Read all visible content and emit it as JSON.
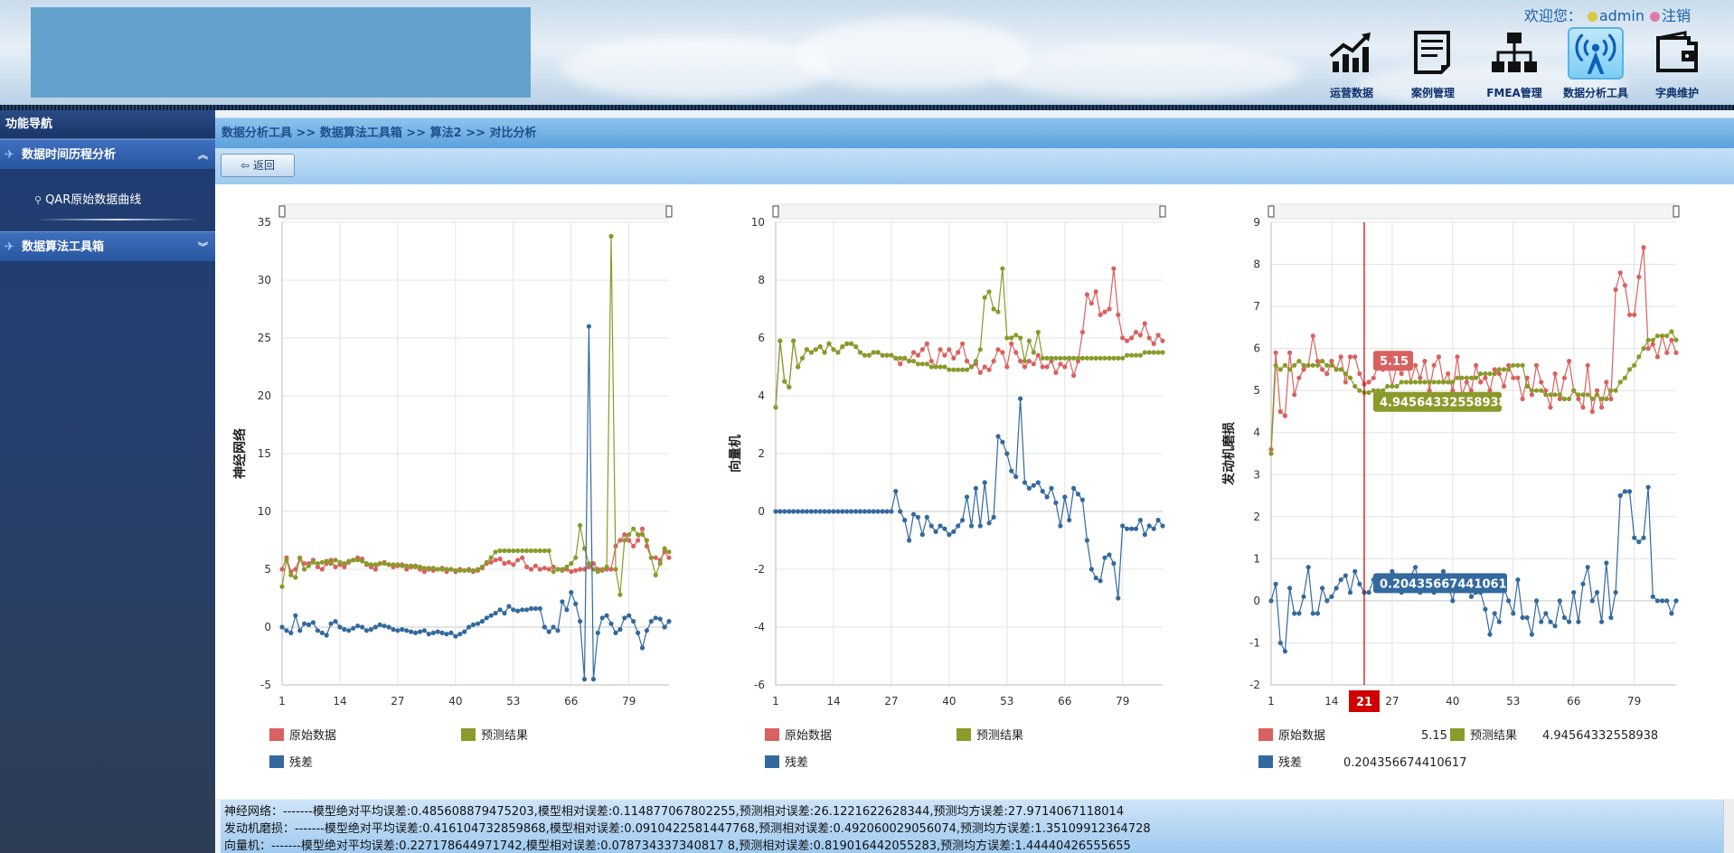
{
  "header": {
    "welcome_label": "欢迎您：",
    "username": "admin",
    "logout_label": "注销"
  },
  "top_nav": [
    {
      "label": "运营数据",
      "icon": "bar-chart-growth-icon",
      "active": false
    },
    {
      "label": "案例管理",
      "icon": "document-list-icon",
      "active": false
    },
    {
      "label": "FMEA管理",
      "icon": "hierarchy-tree-icon",
      "active": false
    },
    {
      "label": "数据分析工具",
      "icon": "antenna-signal-icon",
      "active": true
    },
    {
      "label": "字典维护",
      "icon": "wallet-icon",
      "active": false
    }
  ],
  "sidebar": {
    "title": "功能导航",
    "groups": [
      {
        "label": "数据时间历程分析",
        "expanded": true,
        "items": [
          {
            "label": "QAR原始数据曲线"
          }
        ]
      },
      {
        "label": "数据算法工具箱",
        "expanded": false,
        "items": []
      }
    ]
  },
  "breadcrumb": "数据分析工具 >> 数据算法工具箱 >> 算法2 >> 对比分析",
  "toolbar": {
    "back_label": "返回"
  },
  "colors": {
    "raw": "#d9615f",
    "predict": "#8a9a2b",
    "residual": "#33699e",
    "crosshair": "#c00000"
  },
  "legend_labels": {
    "raw": "原始数据",
    "predict": "预测结果",
    "residual": "残差"
  },
  "chart_data": [
    {
      "type": "line",
      "ylabel": "神经网络",
      "ylim": [
        -5,
        35
      ],
      "yticks": [
        -5,
        0,
        5,
        10,
        15,
        20,
        25,
        30,
        35
      ],
      "xticks": [
        1,
        14,
        27,
        40,
        53,
        66,
        79
      ],
      "x_range": [
        1,
        88
      ],
      "grid": true,
      "legend_placement": "bottom",
      "series": [
        {
          "name": "原始数据",
          "key": "raw",
          "values": [
            5.0,
            6.0,
            4.8,
            5.0,
            6.0,
            5.5,
            5.5,
            5.8,
            5.2,
            5.0,
            5.5,
            5.8,
            5.2,
            5.4,
            5.2,
            5.6,
            5.8,
            6.0,
            5.9,
            5.4,
            5.2,
            5.0,
            5.5,
            5.6,
            5.4,
            5.2,
            5.3,
            5.4,
            5.0,
            5.2,
            5.3,
            5.0,
            4.8,
            5.0,
            4.9,
            5.0,
            5.1,
            4.8,
            5.0,
            4.8,
            5.0,
            4.9,
            5.0,
            4.8,
            4.9,
            5.1,
            5.5,
            5.6,
            5.8,
            5.9,
            5.5,
            5.6,
            5.4,
            5.8,
            6.0,
            5.2,
            5.0,
            5.3,
            5.0,
            5.1,
            5.0,
            5.2,
            5.0,
            4.9,
            5.0,
            4.8,
            4.9,
            5.0,
            5.0,
            5.2,
            5.5,
            5.0,
            4.9,
            5.0,
            5.0,
            7.0,
            7.5,
            8.0,
            7.5,
            7.0,
            7.5,
            8.5,
            7.0,
            6.0,
            6.0,
            5.8,
            6.5,
            6.0
          ]
        },
        {
          "name": "预测结果",
          "key": "predict",
          "values": [
            3.5,
            5.8,
            4.5,
            4.3,
            5.9,
            5.0,
            5.3,
            5.6,
            5.5,
            5.6,
            5.7,
            5.5,
            5.8,
            5.6,
            5.5,
            5.7,
            5.8,
            5.8,
            5.7,
            5.5,
            5.4,
            5.4,
            5.5,
            5.5,
            5.4,
            5.4,
            5.4,
            5.3,
            5.3,
            5.3,
            5.2,
            5.2,
            5.1,
            5.1,
            5.1,
            5.0,
            5.0,
            5.0,
            5.0,
            4.9,
            4.9,
            4.9,
            4.9,
            4.9,
            5.0,
            5.2,
            5.6,
            6.0,
            6.5,
            6.6,
            6.6,
            6.6,
            6.6,
            6.6,
            6.6,
            6.6,
            6.6,
            6.6,
            6.6,
            6.6,
            6.6,
            4.8,
            5.0,
            5.0,
            5.2,
            5.5,
            6.0,
            8.8,
            6.8,
            5.5,
            5.0,
            4.8,
            5.0,
            5.2,
            33.8,
            5.0,
            2.8,
            7.5,
            8.0,
            8.5,
            8.0,
            8.0,
            7.5,
            6.0,
            4.5,
            5.5,
            6.8,
            6.5
          ]
        },
        {
          "name": "残差",
          "key": "residual",
          "values": [
            0.0,
            -0.3,
            -0.5,
            1.0,
            -0.3,
            0.3,
            0.2,
            0.4,
            -0.3,
            -0.5,
            -0.7,
            0.3,
            0.5,
            0.0,
            -0.2,
            -0.3,
            -0.1,
            0.1,
            0.0,
            -0.3,
            -0.2,
            0.0,
            0.2,
            0.1,
            0.0,
            -0.2,
            -0.3,
            -0.2,
            -0.3,
            -0.4,
            -0.5,
            -0.4,
            -0.3,
            -0.6,
            -0.5,
            -0.4,
            -0.5,
            -0.6,
            -0.5,
            -0.8,
            -0.6,
            -0.4,
            0.0,
            0.2,
            0.3,
            0.5,
            0.8,
            1.0,
            1.2,
            1.5,
            1.2,
            1.8,
            1.5,
            1.4,
            1.5,
            1.5,
            1.6,
            1.6,
            1.6,
            0.0,
            -0.4,
            0.0,
            -0.3,
            2.2,
            1.5,
            3.0,
            2.0,
            0.5,
            -4.5,
            26.0,
            -4.5,
            -0.5,
            0.8,
            1.0,
            0.3,
            -0.5,
            -0.2,
            0.8,
            1.0,
            0.5,
            -0.5,
            -1.8,
            -0.3,
            0.5,
            0.8,
            0.7,
            0.0,
            0.5
          ]
        }
      ]
    },
    {
      "type": "line",
      "ylabel": "向量机",
      "ylim": [
        -6,
        10
      ],
      "yticks": [
        -6,
        -4,
        -2,
        0,
        2,
        4,
        6,
        8,
        10
      ],
      "xticks": [
        1,
        14,
        27,
        40,
        53,
        66,
        79
      ],
      "x_range": [
        1,
        88
      ],
      "grid": true,
      "legend_placement": "bottom",
      "series": [
        {
          "name": "原始数据",
          "key": "raw",
          "values": [
            3.6,
            5.9,
            4.5,
            4.3,
            5.9,
            5.0,
            5.3,
            5.6,
            5.5,
            5.6,
            5.7,
            5.5,
            5.8,
            5.6,
            5.5,
            5.7,
            5.8,
            5.8,
            5.7,
            5.5,
            5.4,
            5.4,
            5.5,
            5.5,
            5.4,
            5.4,
            5.4,
            5.3,
            5.1,
            5.3,
            5.2,
            5.5,
            5.4,
            5.6,
            5.8,
            5.2,
            5.0,
            5.6,
            5.4,
            5.6,
            5.3,
            5.5,
            5.8,
            5.2,
            5.0,
            5.1,
            4.8,
            5.0,
            4.9,
            5.2,
            5.6,
            5.5,
            5.0,
            5.8,
            5.5,
            5.2,
            5.0,
            5.2,
            5.1,
            5.4,
            5.0,
            5.0,
            5.2,
            4.8,
            5.1,
            5.0,
            5.3,
            4.7,
            5.2,
            6.2,
            7.5,
            7.2,
            7.6,
            6.8,
            6.9,
            7.0,
            8.4,
            6.8,
            6.0,
            5.9,
            6.0,
            6.2,
            6.1,
            6.5,
            6.0,
            5.8,
            6.1,
            5.9
          ]
        },
        {
          "name": "预测结果",
          "key": "predict",
          "values": [
            3.6,
            5.9,
            4.5,
            4.3,
            5.9,
            5.0,
            5.3,
            5.6,
            5.5,
            5.6,
            5.7,
            5.5,
            5.8,
            5.6,
            5.5,
            5.7,
            5.8,
            5.8,
            5.7,
            5.5,
            5.4,
            5.4,
            5.5,
            5.5,
            5.4,
            5.4,
            5.4,
            5.3,
            5.3,
            5.3,
            5.2,
            5.2,
            5.1,
            5.1,
            5.1,
            5.0,
            5.0,
            5.0,
            5.0,
            4.9,
            4.9,
            4.9,
            4.9,
            4.9,
            5.0,
            5.2,
            5.6,
            7.4,
            7.6,
            7.0,
            6.9,
            8.4,
            6.0,
            6.0,
            6.1,
            6.0,
            5.2,
            5.9,
            5.5,
            6.2,
            5.3,
            5.3,
            5.3,
            5.3,
            5.3,
            5.3,
            5.3,
            5.3,
            5.3,
            5.3,
            5.3,
            5.3,
            5.3,
            5.3,
            5.3,
            5.3,
            5.3,
            5.3,
            5.3,
            5.4,
            5.4,
            5.4,
            5.4,
            5.5,
            5.5,
            5.5,
            5.5,
            5.5
          ]
        },
        {
          "name": "残差",
          "key": "residual",
          "values": [
            0.0,
            0.0,
            0.0,
            0.0,
            0.0,
            0.0,
            0.0,
            0.0,
            0.0,
            0.0,
            0.0,
            0.0,
            0.0,
            0.0,
            0.0,
            0.0,
            0.0,
            0.0,
            0.0,
            0.0,
            0.0,
            0.0,
            0.0,
            0.0,
            0.0,
            0.0,
            0.0,
            0.7,
            0.0,
            -0.3,
            -1.0,
            -0.1,
            -0.2,
            -0.8,
            -0.2,
            -0.5,
            -0.7,
            -0.5,
            -0.6,
            -0.8,
            -0.7,
            -0.5,
            -0.3,
            0.5,
            -0.5,
            0.8,
            -0.5,
            1.0,
            -0.4,
            -0.2,
            2.6,
            2.4,
            2.0,
            1.4,
            1.2,
            3.9,
            1.0,
            0.8,
            0.9,
            1.0,
            0.7,
            0.5,
            0.8,
            0.3,
            -0.5,
            0.5,
            -0.3,
            0.8,
            0.6,
            0.4,
            -1.0,
            -2.0,
            -2.3,
            -2.4,
            -1.6,
            -1.5,
            -1.8,
            -3.0,
            -0.5,
            -0.6,
            -0.6,
            -0.6,
            -0.3,
            -0.8,
            -0.5,
            -0.6,
            -0.3,
            -0.5
          ]
        }
      ]
    },
    {
      "type": "line",
      "ylabel": "发动机磨损",
      "ylim": [
        -2,
        9
      ],
      "yticks": [
        -2,
        -1,
        0,
        1,
        2,
        3,
        4,
        5,
        6,
        7,
        8,
        9
      ],
      "xticks": [
        1,
        14,
        27,
        40,
        53,
        66,
        79
      ],
      "x_range": [
        1,
        88
      ],
      "grid": true,
      "legend_placement": "bottom",
      "crosshair": {
        "x_label": "21",
        "raw_value": "5.15",
        "predict_value": "4.94564332558938",
        "residual_value": "0.204356674410617"
      },
      "series": [
        {
          "name": "原始数据",
          "key": "raw",
          "values": [
            3.6,
            5.9,
            4.5,
            4.4,
            5.9,
            4.9,
            5.3,
            5.5,
            5.6,
            6.3,
            5.7,
            5.5,
            5.4,
            5.7,
            5.5,
            5.8,
            5.2,
            5.8,
            5.8,
            5.4,
            5.15,
            5.2,
            5.3,
            5.6,
            5.5,
            5.7,
            5.1,
            5.6,
            5.4,
            5.8,
            5.2,
            5.6,
            5.3,
            5.7,
            5.0,
            5.6,
            5.8,
            5.2,
            5.4,
            5.0,
            5.8,
            4.9,
            5.2,
            5.0,
            5.6,
            5.2,
            5.3,
            5.0,
            5.5,
            5.4,
            5.1,
            5.6,
            5.3,
            5.3,
            4.8,
            5.3,
            4.9,
            5.6,
            5.2,
            5.0,
            4.6,
            5.4,
            4.8,
            5.3,
            5.7,
            5.0,
            4.8,
            4.6,
            5.6,
            4.5,
            5.0,
            4.6,
            5.2,
            4.8,
            7.4,
            7.8,
            7.5,
            6.8,
            6.8,
            7.7,
            8.4,
            6.0,
            6.1,
            5.8,
            6.3,
            5.9,
            6.2,
            5.9
          ]
        },
        {
          "name": "预测结果",
          "key": "predict",
          "values": [
            3.5,
            5.6,
            5.5,
            5.6,
            5.5,
            5.6,
            5.7,
            5.6,
            5.6,
            5.6,
            5.6,
            5.7,
            5.6,
            5.6,
            5.5,
            5.5,
            5.4,
            5.3,
            5.1,
            5.0,
            4.95,
            4.95,
            5.0,
            5.0,
            5.0,
            5.1,
            5.1,
            5.1,
            5.2,
            5.2,
            5.2,
            5.2,
            5.2,
            5.2,
            5.2,
            5.2,
            5.2,
            5.2,
            5.2,
            5.2,
            5.3,
            5.3,
            5.3,
            5.3,
            5.3,
            5.4,
            5.4,
            5.4,
            5.4,
            5.5,
            5.5,
            5.5,
            5.6,
            5.6,
            5.6,
            5.1,
            5.0,
            5.0,
            5.0,
            4.9,
            4.9,
            4.9,
            4.9,
            4.8,
            4.8,
            5.0,
            4.9,
            4.9,
            4.9,
            4.8,
            4.9,
            4.8,
            4.8,
            5.0,
            5.0,
            5.2,
            5.3,
            5.5,
            5.6,
            5.8,
            6.0,
            6.2,
            6.2,
            6.3,
            6.3,
            6.3,
            6.4,
            6.2
          ]
        },
        {
          "name": "残差",
          "key": "residual",
          "values": [
            0.0,
            0.4,
            -1.0,
            -1.2,
            0.3,
            -0.3,
            -0.3,
            0.1,
            0.8,
            -0.3,
            -0.3,
            0.3,
            0.0,
            0.1,
            0.3,
            0.5,
            0.6,
            0.2,
            0.7,
            0.4,
            0.2,
            0.2,
            0.5,
            0.6,
            0.3,
            0.5,
            0.7,
            0.6,
            0.2,
            0.6,
            0.6,
            0.8,
            0.2,
            0.5,
            0.4,
            0.2,
            0.5,
            0.7,
            0.4,
            0.0,
            0.5,
            0.3,
            0.5,
            0.1,
            0.2,
            0.2,
            -0.2,
            -0.8,
            -0.3,
            -0.5,
            0.3,
            0.0,
            -0.3,
            0.5,
            -0.4,
            -0.4,
            -0.8,
            0.0,
            -0.5,
            -0.3,
            -0.5,
            -0.6,
            0.0,
            -0.4,
            -0.5,
            0.2,
            -0.5,
            0.4,
            0.8,
            0.0,
            0.2,
            -0.5,
            0.9,
            -0.4,
            0.2,
            2.5,
            2.6,
            2.6,
            1.5,
            1.4,
            1.5,
            2.7,
            0.1,
            0.0,
            0.0,
            0.0,
            -0.3,
            0.0
          ]
        }
      ]
    }
  ],
  "summary_lines": [
    "神经网络：-------模型绝对平均误差:0.485608879475203,模型相对误差:0.114877067802255,预测相对误差:26.1221622628344,预测均方误差:27.9714067118014",
    "发动机磨损：-------模型绝对平均误差:0.416104732859868,模型相对误差:0.0910422581447768,预测相对误差:0.492060029056074,预测均方误差:1.35109912364728",
    "向量机：-------模型绝对平均误差:0.227178644971742,模型相对误差:0.078734337340817 8,预测相对误差:0.819016442055283,预测均方误差:1.44440426555655"
  ]
}
